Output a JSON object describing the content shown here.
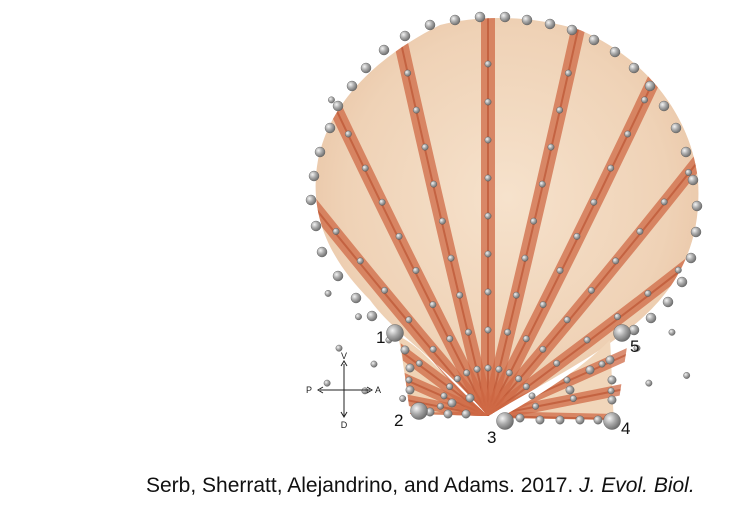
{
  "figure": {
    "landmarks": [
      {
        "id": "1",
        "label": "1"
      },
      {
        "id": "2",
        "label": "2"
      },
      {
        "id": "3",
        "label": "3"
      },
      {
        "id": "4",
        "label": "4"
      },
      {
        "id": "5",
        "label": "5"
      }
    ],
    "orientation": {
      "top": "V",
      "bottom": "D",
      "left": "P",
      "right": "A"
    }
  },
  "citation": {
    "authors": "Serb, Sherratt, Alejandrino, and Adams. 2017.",
    "journal": "J. Evol. Biol."
  },
  "colors": {
    "shell_base": "#f2dcc4",
    "rib": "#cf6a45",
    "semilandmark": "#9b9b9b"
  }
}
